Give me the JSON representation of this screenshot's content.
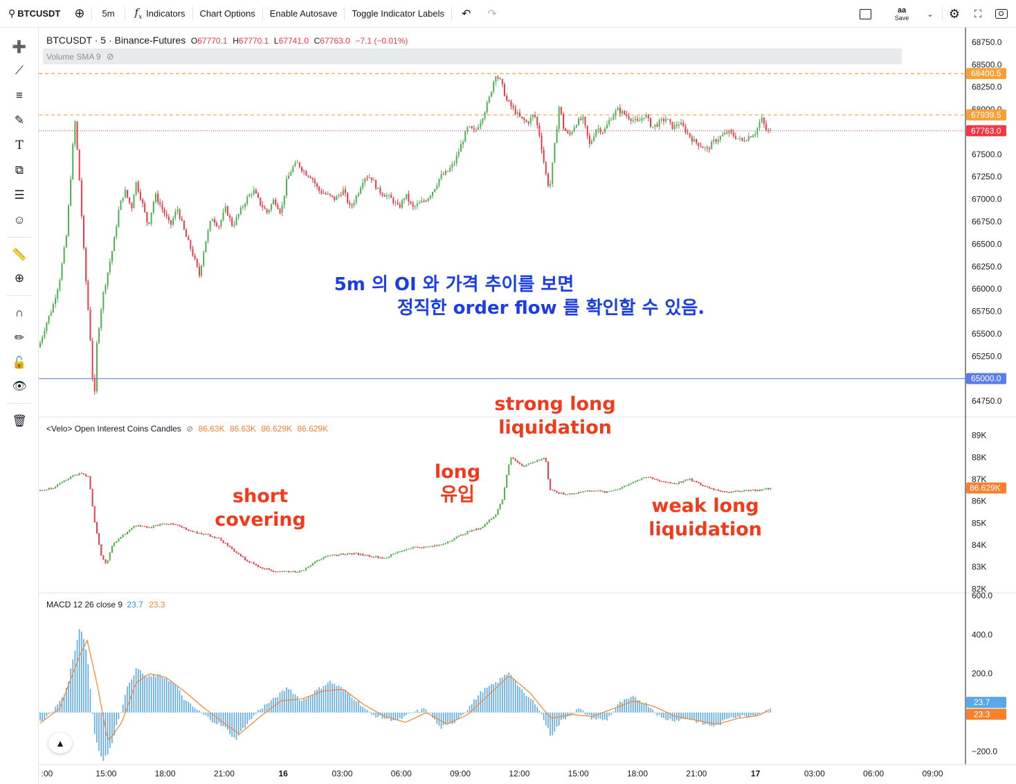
{
  "toolbar": {
    "symbol": "BTCUSDT",
    "interval": "5m",
    "indicators": "Indicators",
    "chart_options": "Chart Options",
    "autosave": "Enable Autosave",
    "toggle_labels": "Toggle Indicator Labels",
    "save_label": "Save",
    "save_top": "aa"
  },
  "sidebar": {
    "icons": [
      "crosshair-icon",
      "trendline-icon",
      "fib-icon",
      "brush-icon",
      "text-icon",
      "pattern-icon",
      "forecast-icon",
      "emoji-icon",
      "ruler-icon",
      "zoom-in-icon",
      "magnet-icon",
      "lock-draw-icon",
      "lock-icon",
      "eye-icon",
      "trash-icon"
    ]
  },
  "main_legend": {
    "title": "BTCUSDT · 5 · Binance-Futures",
    "o_label": "O",
    "o": "67770.1",
    "h_label": "H",
    "h": "67770.1",
    "l_label": "L",
    "l": "67741.0",
    "c_label": "C",
    "c": "67763.0",
    "change": "−7.1 (−0.01%)"
  },
  "volume_legend": "Volume SMA 9",
  "oi_legend": {
    "title": "<Velo> Open Interest Coins Candles",
    "v1": "86.63K",
    "v2": "86.63K",
    "v3": "86.629K",
    "v4": "86.629K"
  },
  "macd_legend": {
    "title": "MACD 12 26 close 9",
    "macd": "23.7",
    "signal": "23.3"
  },
  "annotations": {
    "center_line1": "5m 의 OI 와 가격 추이를 보면",
    "center_line2": "정직한 order flow 를 확인할 수 있음.",
    "strong1": "strong long",
    "strong2": "liquidation",
    "long1": "long",
    "long2": "유입",
    "short1": "short",
    "short2": "covering",
    "weak1": "weak long",
    "weak2": "liquidation"
  },
  "colors": {
    "up": "#26a69a",
    "candle_up": "#4caf50",
    "candle_down": "#f23645",
    "orange_line": "#f7a035",
    "blue_line": "#5b7de8",
    "annot_red": "#f23b1c",
    "annot_blue": "#1a3de8",
    "macd_hist": "#5aa9e6",
    "signal": "#f7812d"
  },
  "chart_data": [
    {
      "type": "candlestick",
      "name": "BTCUSDT price",
      "yticks": [
        "68750.0",
        "68500.0",
        "68250.0",
        "68000.0",
        "67500.0",
        "67250.0",
        "67000.0",
        "66750.0",
        "66500.0",
        "66250.0",
        "66000.0",
        "65750.0",
        "65500.0",
        "65250.0",
        "64750.0"
      ],
      "ylim": [
        64650,
        68850
      ],
      "price_labels": [
        {
          "value": 68400.5,
          "text": "68400.5",
          "color": "#f7a035"
        },
        {
          "value": 67939.5,
          "text": "67939.5",
          "color": "#f7a035"
        },
        {
          "value": 67763.0,
          "text": "67763.0",
          "color": "#f23645"
        },
        {
          "value": 65000.0,
          "text": "65000.0",
          "color": "#5b7de8"
        }
      ],
      "close_path": [
        [
          0,
          65350
        ],
        [
          10,
          65600
        ],
        [
          20,
          65800
        ],
        [
          30,
          66100
        ],
        [
          40,
          66600
        ],
        [
          48,
          67450
        ],
        [
          52,
          67900
        ],
        [
          58,
          67300
        ],
        [
          66,
          66300
        ],
        [
          74,
          65500
        ],
        [
          80,
          64700
        ],
        [
          84,
          65400
        ],
        [
          92,
          65900
        ],
        [
          100,
          66200
        ],
        [
          108,
          66500
        ],
        [
          116,
          66900
        ],
        [
          124,
          67100
        ],
        [
          134,
          66900
        ],
        [
          140,
          67200
        ],
        [
          148,
          67000
        ],
        [
          158,
          66700
        ],
        [
          168,
          67050
        ],
        [
          178,
          66900
        ],
        [
          190,
          66700
        ],
        [
          200,
          66900
        ],
        [
          212,
          66600
        ],
        [
          222,
          66400
        ],
        [
          232,
          66150
        ],
        [
          240,
          66500
        ],
        [
          250,
          66800
        ],
        [
          260,
          66700
        ],
        [
          270,
          66900
        ],
        [
          280,
          66700
        ],
        [
          290,
          66850
        ],
        [
          300,
          67000
        ],
        [
          310,
          67100
        ],
        [
          320,
          66950
        ],
        [
          330,
          66850
        ],
        [
          340,
          67000
        ],
        [
          350,
          66850
        ],
        [
          358,
          67200
        ],
        [
          366,
          67350
        ],
        [
          374,
          67400
        ],
        [
          384,
          67300
        ],
        [
          394,
          67250
        ],
        [
          404,
          67100
        ],
        [
          416,
          67050
        ],
        [
          428,
          67000
        ],
        [
          440,
          67100
        ],
        [
          450,
          66900
        ],
        [
          460,
          67050
        ],
        [
          470,
          67250
        ],
        [
          480,
          67250
        ],
        [
          490,
          67100
        ],
        [
          500,
          67050
        ],
        [
          510,
          67000
        ],
        [
          520,
          66900
        ],
        [
          530,
          67050
        ],
        [
          540,
          66900
        ],
        [
          550,
          66950
        ],
        [
          560,
          67000
        ],
        [
          570,
          67100
        ],
        [
          580,
          67250
        ],
        [
          590,
          67300
        ],
        [
          600,
          67400
        ],
        [
          610,
          67600
        ],
        [
          620,
          67800
        ],
        [
          630,
          67750
        ],
        [
          640,
          67900
        ],
        [
          650,
          68100
        ],
        [
          660,
          68400
        ],
        [
          668,
          68300
        ],
        [
          676,
          68100
        ],
        [
          686,
          68000
        ],
        [
          696,
          67900
        ],
        [
          706,
          67850
        ],
        [
          716,
          67950
        ],
        [
          724,
          67700
        ],
        [
          732,
          67300
        ],
        [
          738,
          67100
        ],
        [
          744,
          67500
        ],
        [
          752,
          68050
        ],
        [
          758,
          67800
        ],
        [
          766,
          67700
        ],
        [
          776,
          67850
        ],
        [
          786,
          67900
        ],
        [
          796,
          67600
        ],
        [
          806,
          67800
        ],
        [
          816,
          67750
        ],
        [
          826,
          67900
        ],
        [
          836,
          68000
        ],
        [
          846,
          67950
        ],
        [
          856,
          67900
        ],
        [
          866,
          67850
        ],
        [
          876,
          67950
        ],
        [
          886,
          67800
        ],
        [
          896,
          67850
        ],
        [
          906,
          67900
        ],
        [
          916,
          67800
        ],
        [
          926,
          67850
        ],
        [
          936,
          67750
        ],
        [
          946,
          67650
        ],
        [
          956,
          67600
        ],
        [
          966,
          67550
        ],
        [
          976,
          67650
        ],
        [
          986,
          67700
        ],
        [
          996,
          67750
        ],
        [
          1006,
          67700
        ],
        [
          1016,
          67650
        ],
        [
          1026,
          67700
        ],
        [
          1036,
          67750
        ],
        [
          1044,
          67900
        ],
        [
          1052,
          67750
        ],
        [
          1060,
          67763
        ]
      ]
    },
    {
      "type": "candlestick",
      "name": "<Velo> Open Interest Coins Candles",
      "yticks": [
        "89K",
        "88K",
        "87K",
        "86K",
        "85K",
        "84K",
        "83K",
        "82K"
      ],
      "ylim": [
        81.95,
        89.65
      ],
      "last_label": "86.629K",
      "path": [
        [
          0,
          86.5
        ],
        [
          20,
          86.6
        ],
        [
          40,
          87.0
        ],
        [
          60,
          87.3
        ],
        [
          72,
          87.1
        ],
        [
          80,
          85.2
        ],
        [
          90,
          83.5
        ],
        [
          98,
          83.1
        ],
        [
          106,
          84.0
        ],
        [
          120,
          84.4
        ],
        [
          140,
          84.9
        ],
        [
          160,
          84.8
        ],
        [
          180,
          85.0
        ],
        [
          200,
          84.9
        ],
        [
          220,
          84.6
        ],
        [
          240,
          84.5
        ],
        [
          260,
          84.3
        ],
        [
          280,
          83.8
        ],
        [
          300,
          83.3
        ],
        [
          320,
          83.0
        ],
        [
          340,
          82.8
        ],
        [
          360,
          82.8
        ],
        [
          380,
          82.8
        ],
        [
          400,
          83.3
        ],
        [
          420,
          83.5
        ],
        [
          440,
          83.6
        ],
        [
          460,
          83.6
        ],
        [
          480,
          83.5
        ],
        [
          500,
          83.4
        ],
        [
          520,
          83.7
        ],
        [
          540,
          83.9
        ],
        [
          560,
          83.9
        ],
        [
          580,
          84.0
        ],
        [
          600,
          84.3
        ],
        [
          620,
          84.6
        ],
        [
          640,
          84.8
        ],
        [
          660,
          85.4
        ],
        [
          670,
          86.1
        ],
        [
          676,
          87.2
        ],
        [
          682,
          88.0
        ],
        [
          700,
          87.6
        ],
        [
          716,
          87.8
        ],
        [
          732,
          88.0
        ],
        [
          738,
          86.5
        ],
        [
          760,
          86.3
        ],
        [
          780,
          86.4
        ],
        [
          800,
          86.5
        ],
        [
          820,
          86.4
        ],
        [
          840,
          86.6
        ],
        [
          860,
          86.9
        ],
        [
          880,
          87.1
        ],
        [
          900,
          86.9
        ],
        [
          920,
          86.8
        ],
        [
          940,
          87.0
        ],
        [
          960,
          86.7
        ],
        [
          980,
          86.5
        ],
        [
          1000,
          86.4
        ],
        [
          1020,
          86.5
        ],
        [
          1040,
          86.5
        ],
        [
          1060,
          86.6
        ]
      ]
    },
    {
      "type": "bar",
      "name": "MACD 12 26 close 9",
      "yticks": [
        "600.0",
        "400.0",
        "200.0",
        "−200.0"
      ],
      "ylim": [
        -260,
        600
      ],
      "macd_last": "23.7",
      "signal_last": "23.3",
      "hist_path": [
        [
          0,
          -50
        ],
        [
          20,
          0
        ],
        [
          40,
          120
        ],
        [
          60,
          450
        ],
        [
          70,
          300
        ],
        [
          80,
          -100
        ],
        [
          92,
          -250
        ],
        [
          102,
          -200
        ],
        [
          116,
          -20
        ],
        [
          130,
          150
        ],
        [
          142,
          230
        ],
        [
          156,
          180
        ],
        [
          170,
          190
        ],
        [
          184,
          180
        ],
        [
          198,
          140
        ],
        [
          212,
          60
        ],
        [
          230,
          10
        ],
        [
          250,
          -40
        ],
        [
          270,
          -80
        ],
        [
          284,
          -140
        ],
        [
          300,
          -60
        ],
        [
          320,
          20
        ],
        [
          340,
          70
        ],
        [
          360,
          130
        ],
        [
          380,
          60
        ],
        [
          400,
          110
        ],
        [
          420,
          160
        ],
        [
          440,
          120
        ],
        [
          460,
          60
        ],
        [
          480,
          -10
        ],
        [
          500,
          -30
        ],
        [
          520,
          -40
        ],
        [
          540,
          0
        ],
        [
          560,
          20
        ],
        [
          580,
          -80
        ],
        [
          600,
          -50
        ],
        [
          620,
          20
        ],
        [
          640,
          110
        ],
        [
          660,
          150
        ],
        [
          680,
          210
        ],
        [
          700,
          100
        ],
        [
          720,
          40
        ],
        [
          740,
          -120
        ],
        [
          756,
          -40
        ],
        [
          780,
          20
        ],
        [
          800,
          -30
        ],
        [
          820,
          -40
        ],
        [
          840,
          50
        ],
        [
          860,
          80
        ],
        [
          880,
          40
        ],
        [
          900,
          -30
        ],
        [
          920,
          -40
        ],
        [
          940,
          -30
        ],
        [
          960,
          -60
        ],
        [
          980,
          -70
        ],
        [
          1000,
          -20
        ],
        [
          1020,
          -20
        ],
        [
          1040,
          -10
        ],
        [
          1060,
          24
        ]
      ],
      "signal_path": [
        [
          0,
          -60
        ],
        [
          30,
          20
        ],
        [
          60,
          300
        ],
        [
          70,
          370
        ],
        [
          84,
          150
        ],
        [
          100,
          -150
        ],
        [
          120,
          -50
        ],
        [
          140,
          150
        ],
        [
          160,
          200
        ],
        [
          184,
          180
        ],
        [
          210,
          110
        ],
        [
          240,
          20
        ],
        [
          270,
          -60
        ],
        [
          290,
          -110
        ],
        [
          320,
          -20
        ],
        [
          350,
          60
        ],
        [
          380,
          70
        ],
        [
          410,
          110
        ],
        [
          440,
          120
        ],
        [
          470,
          40
        ],
        [
          500,
          -20
        ],
        [
          530,
          -50
        ],
        [
          560,
          0
        ],
        [
          590,
          -60
        ],
        [
          620,
          -10
        ],
        [
          650,
          90
        ],
        [
          680,
          190
        ],
        [
          710,
          100
        ],
        [
          740,
          -30
        ],
        [
          770,
          -10
        ],
        [
          800,
          -20
        ],
        [
          830,
          20
        ],
        [
          860,
          60
        ],
        [
          890,
          30
        ],
        [
          920,
          -20
        ],
        [
          950,
          -40
        ],
        [
          980,
          -60
        ],
        [
          1010,
          -30
        ],
        [
          1040,
          -15
        ],
        [
          1060,
          23
        ]
      ]
    }
  ],
  "xaxis": {
    "ticks": [
      ":00",
      "15:00",
      "18:00",
      "21:00",
      "16",
      "03:00",
      "06:00",
      "09:00",
      "12:00",
      "15:00",
      "18:00",
      "21:00",
      "17",
      "03:00",
      "06:00",
      "09:00"
    ],
    "bold": [
      false,
      false,
      false,
      false,
      true,
      false,
      false,
      false,
      false,
      false,
      false,
      false,
      true,
      false,
      false,
      false
    ]
  }
}
